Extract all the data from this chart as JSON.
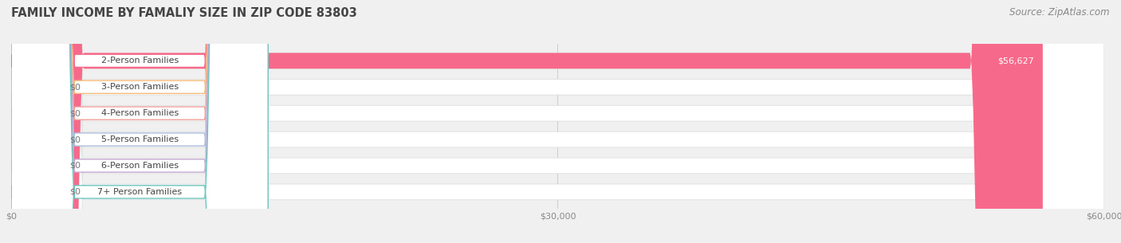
{
  "title": "FAMILY INCOME BY FAMALIY SIZE IN ZIP CODE 83803",
  "source": "Source: ZipAtlas.com",
  "categories": [
    "2-Person Families",
    "3-Person Families",
    "4-Person Families",
    "5-Person Families",
    "6-Person Families",
    "7+ Person Families"
  ],
  "values": [
    56627,
    0,
    0,
    0,
    0,
    0
  ],
  "bar_colors": [
    "#F7698A",
    "#F5BB7C",
    "#F2A09A",
    "#AABEDE",
    "#C3A8D1",
    "#6DC5BF"
  ],
  "value_labels": [
    "$56,627",
    "$0",
    "$0",
    "$0",
    "$0",
    "$0"
  ],
  "xlim": [
    0,
    60000
  ],
  "xticks": [
    0,
    30000,
    60000
  ],
  "xtick_labels": [
    "$0",
    "$30,000",
    "$60,000"
  ],
  "background_color": "#f0f0f0",
  "title_fontsize": 10.5,
  "source_fontsize": 8.5,
  "label_fontsize": 8,
  "value_fontsize": 8,
  "tick_fontsize": 8
}
